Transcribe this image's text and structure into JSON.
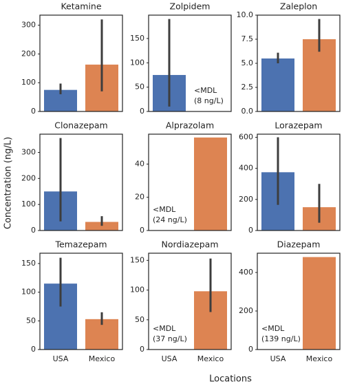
{
  "ylabel": "Concentration (ng/L)",
  "xlabel": "Locations",
  "chart_data": [
    {
      "type": "bar",
      "title": "Ketamine",
      "categories": [
        null,
        null
      ],
      "values": [
        75,
        163
      ],
      "ci": [
        [
          60,
          97
        ],
        [
          70,
          320
        ]
      ],
      "colors": [
        "#4c72b0",
        "#dd8452"
      ],
      "ylim": [
        0,
        335
      ],
      "yticks": [
        0,
        100,
        200,
        300
      ]
    },
    {
      "type": "bar",
      "title": "Zolpidem",
      "categories": [
        null,
        null
      ],
      "values": [
        75,
        null
      ],
      "ci": [
        [
          10,
          190
        ],
        null
      ],
      "colors": [
        "#4c72b0",
        "#dd8452"
      ],
      "ylim": [
        0,
        198
      ],
      "yticks": [
        0,
        50,
        100,
        150
      ],
      "annotation": [
        "<MDL",
        "(8 ng/L)"
      ]
    },
    {
      "type": "bar",
      "title": "Zaleplon",
      "categories": [
        null,
        null
      ],
      "values": [
        5.5,
        7.5
      ],
      "ci": [
        [
          5.0,
          6.1
        ],
        [
          6.2,
          9.6
        ]
      ],
      "colors": [
        "#4c72b0",
        "#dd8452"
      ],
      "ylim": [
        0,
        10
      ],
      "yticks": [
        {
          "value": 0,
          "label": "0.0"
        },
        {
          "value": 2.5,
          "label": "2.5"
        },
        {
          "value": 5,
          "label": "5.0"
        },
        {
          "value": 7.5,
          "label": "7.5"
        },
        {
          "value": 10,
          "label": "10.0"
        }
      ]
    },
    {
      "type": "bar",
      "title": "Clonazepam",
      "categories": [
        null,
        null
      ],
      "values": [
        150,
        33
      ],
      "ci": [
        [
          35,
          355
        ],
        [
          18,
          55
        ]
      ],
      "colors": [
        "#4c72b0",
        "#dd8452"
      ],
      "ylim": [
        0,
        370
      ],
      "yticks": [
        0,
        100,
        200,
        300
      ]
    },
    {
      "type": "bar",
      "title": "Alprazolam",
      "categories": [
        null,
        null
      ],
      "values": [
        null,
        56
      ],
      "ci": [
        null,
        null
      ],
      "colors": [
        "#4c72b0",
        "#dd8452"
      ],
      "ylim": [
        0,
        58
      ],
      "yticks": [
        0,
        20,
        40
      ],
      "annotation": [
        "<MDL",
        "(24 ng/L)"
      ]
    },
    {
      "type": "bar",
      "title": "Lorazepam",
      "categories": [
        null,
        null
      ],
      "values": [
        375,
        150
      ],
      "ci": [
        [
          165,
          600
        ],
        [
          50,
          300
        ]
      ],
      "colors": [
        "#4c72b0",
        "#dd8452"
      ],
      "ylim": [
        0,
        620
      ],
      "yticks": [
        0,
        200,
        400,
        600
      ]
    },
    {
      "type": "bar",
      "title": "Temazepam",
      "categories": [
        "USA",
        "Mexico"
      ],
      "values": [
        115,
        53
      ],
      "ci": [
        [
          75,
          160
        ],
        [
          43,
          65
        ]
      ],
      "colors": [
        "#4c72b0",
        "#dd8452"
      ],
      "ylim": [
        0,
        168
      ],
      "yticks": [
        0,
        50,
        100,
        150
      ]
    },
    {
      "type": "bar",
      "title": "Nordiazepam",
      "categories": [
        "USA",
        "Mexico"
      ],
      "values": [
        null,
        98
      ],
      "ci": [
        null,
        [
          63,
          153
        ]
      ],
      "colors": [
        "#4c72b0",
        "#dd8452"
      ],
      "ylim": [
        0,
        162
      ],
      "yticks": [
        0,
        50,
        100,
        150
      ],
      "annotation": [
        "<MDL",
        "(37 ng/L)"
      ]
    },
    {
      "type": "bar",
      "title": "Diazepam",
      "categories": [
        "USA",
        "Mexico"
      ],
      "values": [
        null,
        480
      ],
      "ci": [
        null,
        null
      ],
      "colors": [
        "#4c72b0",
        "#dd8452"
      ],
      "ylim": [
        0,
        500
      ],
      "yticks": [
        0,
        200,
        400
      ],
      "annotation": [
        "<MDL",
        "(139 ng/L)"
      ]
    }
  ]
}
